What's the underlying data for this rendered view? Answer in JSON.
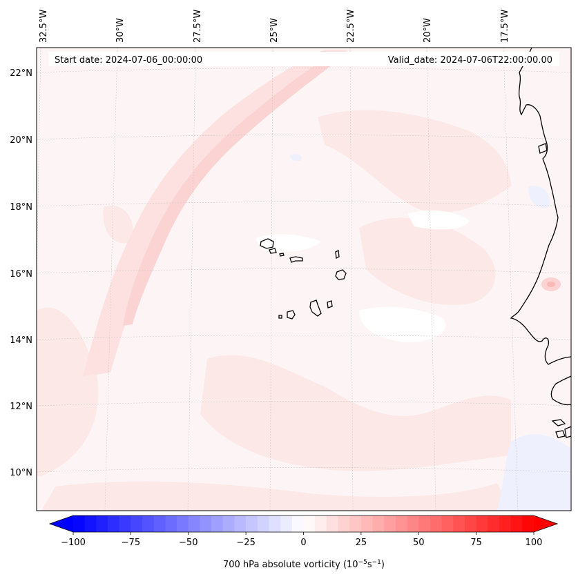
{
  "header": {
    "start_date": "Start date: 2024-07-06_00:00:00",
    "valid_date": "Valid_date: 2024-07-06T22:00:00.00"
  },
  "map": {
    "lon_labels": [
      "32.5°W",
      "30°W",
      "27.5°W",
      "25°W",
      "22.5°W",
      "20°W",
      "17.5°W"
    ],
    "lat_labels": [
      "22°N",
      "20°N",
      "18°N",
      "16°N",
      "14°N",
      "12°N",
      "10°N"
    ],
    "colors": {
      "background": "#fdf5f5",
      "light_pink": "#fde6e6",
      "medium_pink": "#fcd6d6",
      "light_blue": "#eef0fe",
      "coast": "#000000",
      "grid": "#c8c8c8"
    }
  },
  "colorbar": {
    "variable": "700 hPa absolute vorticity",
    "units": "(10",
    "units_exp1": "−5",
    "units_mid": "s",
    "units_exp2": "−1",
    "units_close": ")",
    "ticks": [
      "−100",
      "−75",
      "−50",
      "−25",
      "0",
      "25",
      "50",
      "75",
      "100"
    ],
    "min": -100,
    "max": 100,
    "n_levels": 40
  }
}
